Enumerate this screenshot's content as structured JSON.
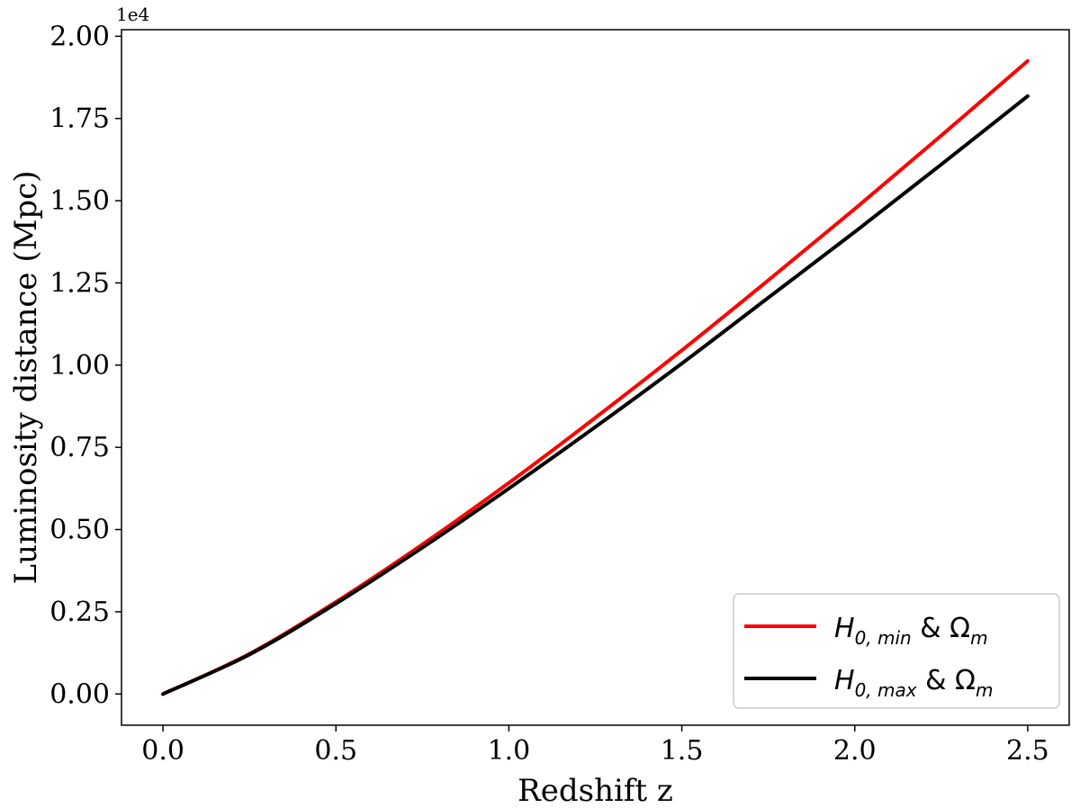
{
  "chart_data": {
    "type": "line",
    "title": "",
    "xlabel": "Redshift z",
    "ylabel": "Luminosity distance (Mpc)",
    "y_offset_label": "1e4",
    "xlim": [
      -0.12,
      2.62
    ],
    "ylim": [
      -0.095,
      2.02
    ],
    "x_ticks": [
      0.0,
      0.5,
      1.0,
      1.5,
      2.0,
      2.5
    ],
    "x_tick_labels": [
      "0.0",
      "0.5",
      "1.0",
      "1.5",
      "2.0",
      "2.5"
    ],
    "y_ticks": [
      0.0,
      0.25,
      0.5,
      0.75,
      1.0,
      1.25,
      1.5,
      1.75,
      2.0
    ],
    "y_tick_labels": [
      "0.00",
      "0.25",
      "0.50",
      "0.75",
      "1.00",
      "1.25",
      "1.50",
      "1.75",
      "2.00"
    ],
    "grid": false,
    "legend_position": "bottom-right",
    "x": [
      0.0,
      0.25,
      0.5,
      0.75,
      1.0,
      1.25,
      1.5,
      1.75,
      2.0,
      2.25,
      2.5
    ],
    "series": [
      {
        "name": "H0,min & Ωm",
        "legend_main": "H",
        "legend_sub": "0, min",
        "legend_rest": " & Ω",
        "legend_sub2": "m",
        "color": "#ff0000",
        "values": [
          0.0,
          0.122,
          0.28,
          0.455,
          0.642,
          0.84,
          1.045,
          1.258,
          1.475,
          1.698,
          1.925
        ]
      },
      {
        "name": "H0,max & Ωm",
        "legend_main": "H",
        "legend_sub": "0, max",
        "legend_rest": " & Ω",
        "legend_sub2": "m",
        "color": "#000000",
        "values": [
          0.0,
          0.12,
          0.275,
          0.445,
          0.625,
          0.812,
          1.005,
          1.205,
          1.405,
          1.61,
          1.818
        ]
      }
    ]
  }
}
